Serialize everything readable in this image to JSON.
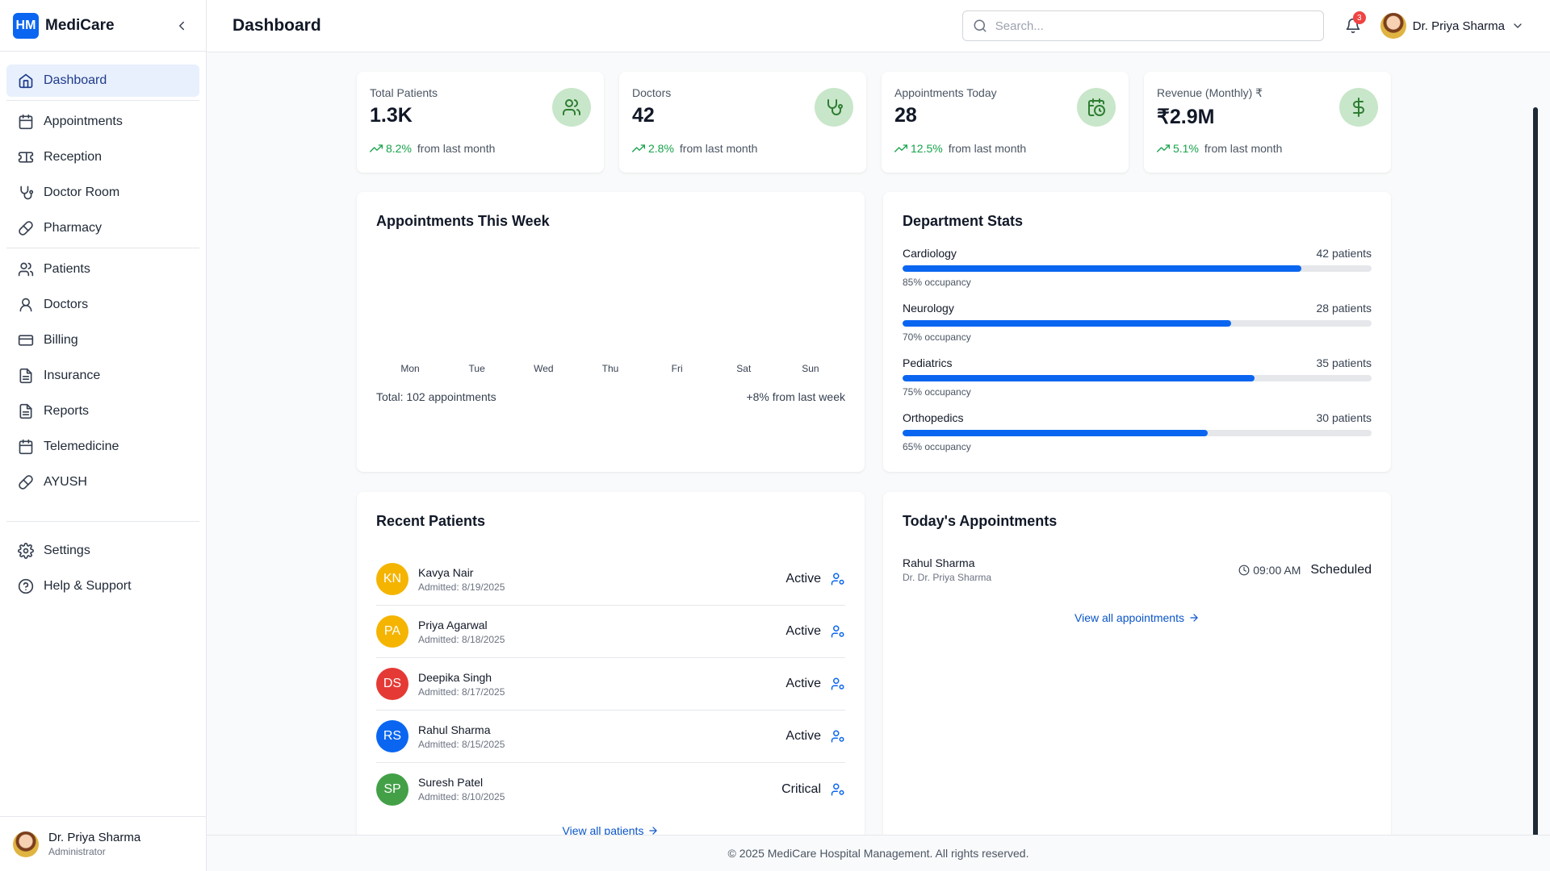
{
  "brand": {
    "logo_text": "HM",
    "name": "MediCare"
  },
  "sidebar": {
    "items": [
      {
        "label": "Dashboard",
        "icon": "home-icon",
        "active": true
      },
      {
        "label": "Appointments",
        "icon": "calendar-icon"
      },
      {
        "label": "Reception",
        "icon": "ticket-icon"
      },
      {
        "label": "Doctor Room",
        "icon": "stethoscope-icon"
      },
      {
        "label": "Pharmacy",
        "icon": "pill-icon"
      },
      {
        "label": "Patients",
        "icon": "users-icon"
      },
      {
        "label": "Doctors",
        "icon": "user-icon"
      },
      {
        "label": "Billing",
        "icon": "credit-card-icon"
      },
      {
        "label": "Insurance",
        "icon": "file-text-icon"
      },
      {
        "label": "Reports",
        "icon": "file-text-icon"
      },
      {
        "label": "Telemedicine",
        "icon": "calendar-icon"
      },
      {
        "label": "AYUSH",
        "icon": "pill-icon"
      }
    ],
    "bottom_items": [
      {
        "label": "Settings",
        "icon": "gear-icon"
      },
      {
        "label": "Help & Support",
        "icon": "help-circle-icon"
      }
    ],
    "user": {
      "name": "Dr. Priya Sharma",
      "role": "Administrator"
    }
  },
  "header": {
    "title": "Dashboard",
    "search_placeholder": "Search...",
    "notification_count": "3",
    "user_name": "Dr. Priya Sharma"
  },
  "stats": [
    {
      "label": "Total Patients",
      "value": "1.3K",
      "trend": "8.2%",
      "trend_text": "from last month",
      "icon": "users-icon"
    },
    {
      "label": "Doctors",
      "value": "42",
      "trend": "2.8%",
      "trend_text": "from last month",
      "icon": "stethoscope-icon"
    },
    {
      "label": "Appointments Today",
      "value": "28",
      "trend": "12.5%",
      "trend_text": "from last month",
      "icon": "calendar-clock-icon"
    },
    {
      "label": "Revenue (Monthly) ₹",
      "value": "₹2.9M",
      "trend": "5.1%",
      "trend_text": "from last month",
      "icon": "dollar-icon"
    }
  ],
  "week_chart": {
    "title": "Appointments This Week",
    "days": [
      "Mon",
      "Tue",
      "Wed",
      "Thu",
      "Fri",
      "Sat",
      "Sun"
    ],
    "total": "Total: 102 appointments",
    "change": "+8% from last week"
  },
  "departments": {
    "title": "Department Stats",
    "items": [
      {
        "name": "Cardiology",
        "count": "42 patients",
        "occupancy_text": "85% occupancy",
        "occupancy": 0.85
      },
      {
        "name": "Neurology",
        "count": "28 patients",
        "occupancy_text": "70% occupancy",
        "occupancy": 0.7
      },
      {
        "name": "Pediatrics",
        "count": "35 patients",
        "occupancy_text": "75% occupancy",
        "occupancy": 0.75
      },
      {
        "name": "Orthopedics",
        "count": "30 patients",
        "occupancy_text": "65% occupancy",
        "occupancy": 0.65
      }
    ]
  },
  "recent_patients": {
    "title": "Recent Patients",
    "items": [
      {
        "initials": "KN",
        "name": "Kavya Nair",
        "admitted": "Admitted: 8/19/2025",
        "status": "Active",
        "color": "#f5b400"
      },
      {
        "initials": "PA",
        "name": "Priya Agarwal",
        "admitted": "Admitted: 8/18/2025",
        "status": "Active",
        "color": "#f5b400"
      },
      {
        "initials": "DS",
        "name": "Deepika Singh",
        "admitted": "Admitted: 8/17/2025",
        "status": "Active",
        "color": "#e53935"
      },
      {
        "initials": "RS",
        "name": "Rahul Sharma",
        "admitted": "Admitted: 8/15/2025",
        "status": "Active",
        "color": "#0a66f0"
      },
      {
        "initials": "SP",
        "name": "Suresh Patel",
        "admitted": "Admitted: 8/10/2025",
        "status": "Critical",
        "color": "#43a047"
      }
    ],
    "view_all": "View all patients"
  },
  "today_appointments": {
    "title": "Today's Appointments",
    "items": [
      {
        "patient": "Rahul Sharma",
        "doctor": "Dr. Dr. Priya Sharma",
        "time": "09:00 AM",
        "status": "Scheduled"
      }
    ],
    "view_all": "View all appointments"
  },
  "footer": "© 2025 MediCare Hospital Management. All rights reserved."
}
